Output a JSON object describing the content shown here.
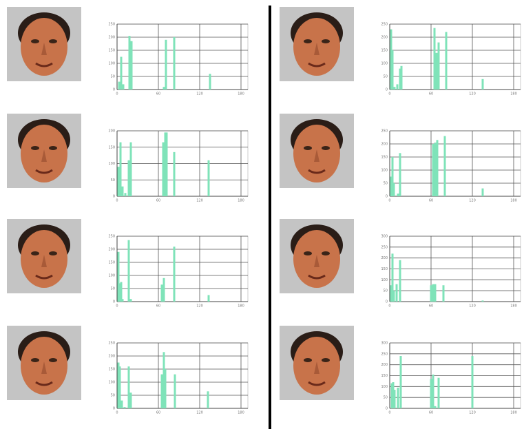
{
  "chart_data": [
    {
      "type": "bar",
      "color": "#7fe3b9",
      "xlim": [
        0,
        190
      ],
      "xticks": [
        0,
        60,
        120,
        180
      ],
      "ylim": [
        0,
        250
      ],
      "yticks": [
        0,
        50,
        100,
        150,
        200,
        250
      ],
      "grid": true,
      "x": [
        3,
        6,
        9,
        18,
        21,
        68,
        71,
        83,
        135
      ],
      "values": [
        30,
        125,
        20,
        205,
        185,
        10,
        190,
        200,
        60
      ]
    },
    {
      "type": "bar",
      "color": "#7fe3b9",
      "xlim": [
        0,
        190
      ],
      "xticks": [
        0,
        60,
        120,
        180
      ],
      "ylim": [
        0,
        200
      ],
      "yticks": [
        0,
        50,
        100,
        150,
        200
      ],
      "grid": true,
      "x": [
        2,
        5,
        8,
        12,
        17,
        20,
        67,
        70,
        72,
        83,
        133
      ],
      "values": [
        90,
        165,
        30,
        10,
        110,
        165,
        165,
        195,
        195,
        135,
        110
      ]
    },
    {
      "type": "bar",
      "color": "#7fe3b9",
      "xlim": [
        0,
        190
      ],
      "xticks": [
        0,
        60,
        120,
        180
      ],
      "ylim": [
        0,
        250
      ],
      "yticks": [
        0,
        50,
        100,
        150,
        200,
        250
      ],
      "grid": true,
      "x": [
        2,
        4,
        6,
        8,
        17,
        20,
        65,
        68,
        83,
        133
      ],
      "values": [
        190,
        70,
        75,
        10,
        235,
        10,
        65,
        90,
        210,
        25
      ]
    },
    {
      "type": "bar",
      "color": "#7fe3b9",
      "xlim": [
        0,
        190
      ],
      "xticks": [
        0,
        60,
        120,
        180
      ],
      "ylim": [
        0,
        250
      ],
      "yticks": [
        0,
        50,
        100,
        150,
        200,
        250
      ],
      "grid": true,
      "x": [
        2,
        4,
        7,
        11,
        17,
        20,
        65,
        68,
        70,
        84,
        132
      ],
      "values": [
        175,
        160,
        30,
        5,
        160,
        60,
        130,
        215,
        150,
        130,
        65
      ]
    },
    {
      "type": "bar",
      "color": "#7fe3b9",
      "xlim": [
        0,
        190
      ],
      "xticks": [
        0,
        60,
        120,
        180
      ],
      "ylim": [
        0,
        250
      ],
      "yticks": [
        0,
        50,
        100,
        150,
        200,
        250
      ],
      "grid": true,
      "x": [
        2,
        4,
        7,
        11,
        15,
        17,
        65,
        68,
        71,
        82,
        135
      ],
      "values": [
        230,
        150,
        10,
        20,
        80,
        90,
        235,
        140,
        180,
        220,
        40
      ]
    },
    {
      "type": "bar",
      "color": "#7fe3b9",
      "xlim": [
        0,
        190
      ],
      "xticks": [
        0,
        60,
        120,
        180
      ],
      "ylim": [
        0,
        250
      ],
      "yticks": [
        0,
        50,
        100,
        150,
        200,
        250
      ],
      "grid": true,
      "x": [
        2,
        4,
        6,
        12,
        15,
        63,
        66,
        69,
        80,
        135
      ],
      "values": [
        75,
        150,
        50,
        10,
        165,
        200,
        205,
        215,
        230,
        30
      ]
    },
    {
      "type": "bar",
      "color": "#7fe3b9",
      "xlim": [
        0,
        190
      ],
      "xticks": [
        0,
        60,
        120,
        180
      ],
      "ylim": [
        0,
        300
      ],
      "yticks": [
        0,
        50,
        100,
        150,
        200,
        250,
        300
      ],
      "grid": true,
      "x": [
        2,
        4,
        6,
        10,
        15,
        60,
        63,
        66,
        78,
        135
      ],
      "values": [
        75,
        220,
        50,
        80,
        190,
        75,
        80,
        80,
        75,
        5
      ]
    },
    {
      "type": "bar",
      "color": "#7fe3b9",
      "xlim": [
        0,
        190
      ],
      "xticks": [
        0,
        60,
        120,
        180
      ],
      "ylim": [
        0,
        300
      ],
      "yticks": [
        0,
        50,
        100,
        150,
        200,
        250,
        300
      ],
      "grid": true,
      "x": [
        3,
        5,
        7,
        12,
        16,
        60,
        63,
        66,
        71,
        120
      ],
      "values": [
        115,
        120,
        85,
        95,
        240,
        135,
        155,
        10,
        140,
        240
      ]
    }
  ]
}
